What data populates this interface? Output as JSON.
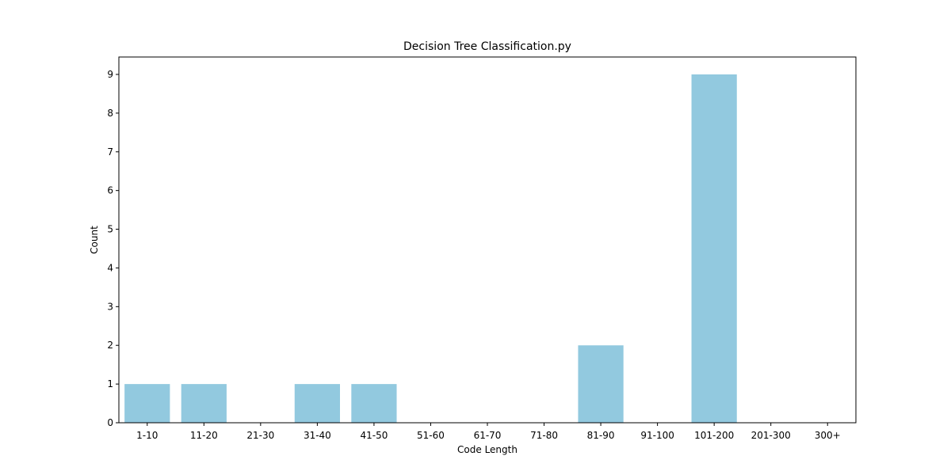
{
  "chart_data": {
    "type": "bar",
    "title": "Decision Tree Classification.py",
    "xlabel": "Code Length",
    "ylabel": "Count",
    "categories": [
      "1-10",
      "11-20",
      "21-30",
      "31-40",
      "41-50",
      "51-60",
      "61-70",
      "71-80",
      "81-90",
      "91-100",
      "101-200",
      "201-300",
      "300+"
    ],
    "values": [
      1,
      1,
      0,
      1,
      1,
      0,
      0,
      0,
      2,
      0,
      9,
      0,
      0
    ],
    "ylim": [
      0,
      9.45
    ],
    "yticks": [
      0,
      1,
      2,
      3,
      4,
      5,
      6,
      7,
      8,
      9
    ],
    "bar_color": "#92c9df",
    "grid": false
  }
}
